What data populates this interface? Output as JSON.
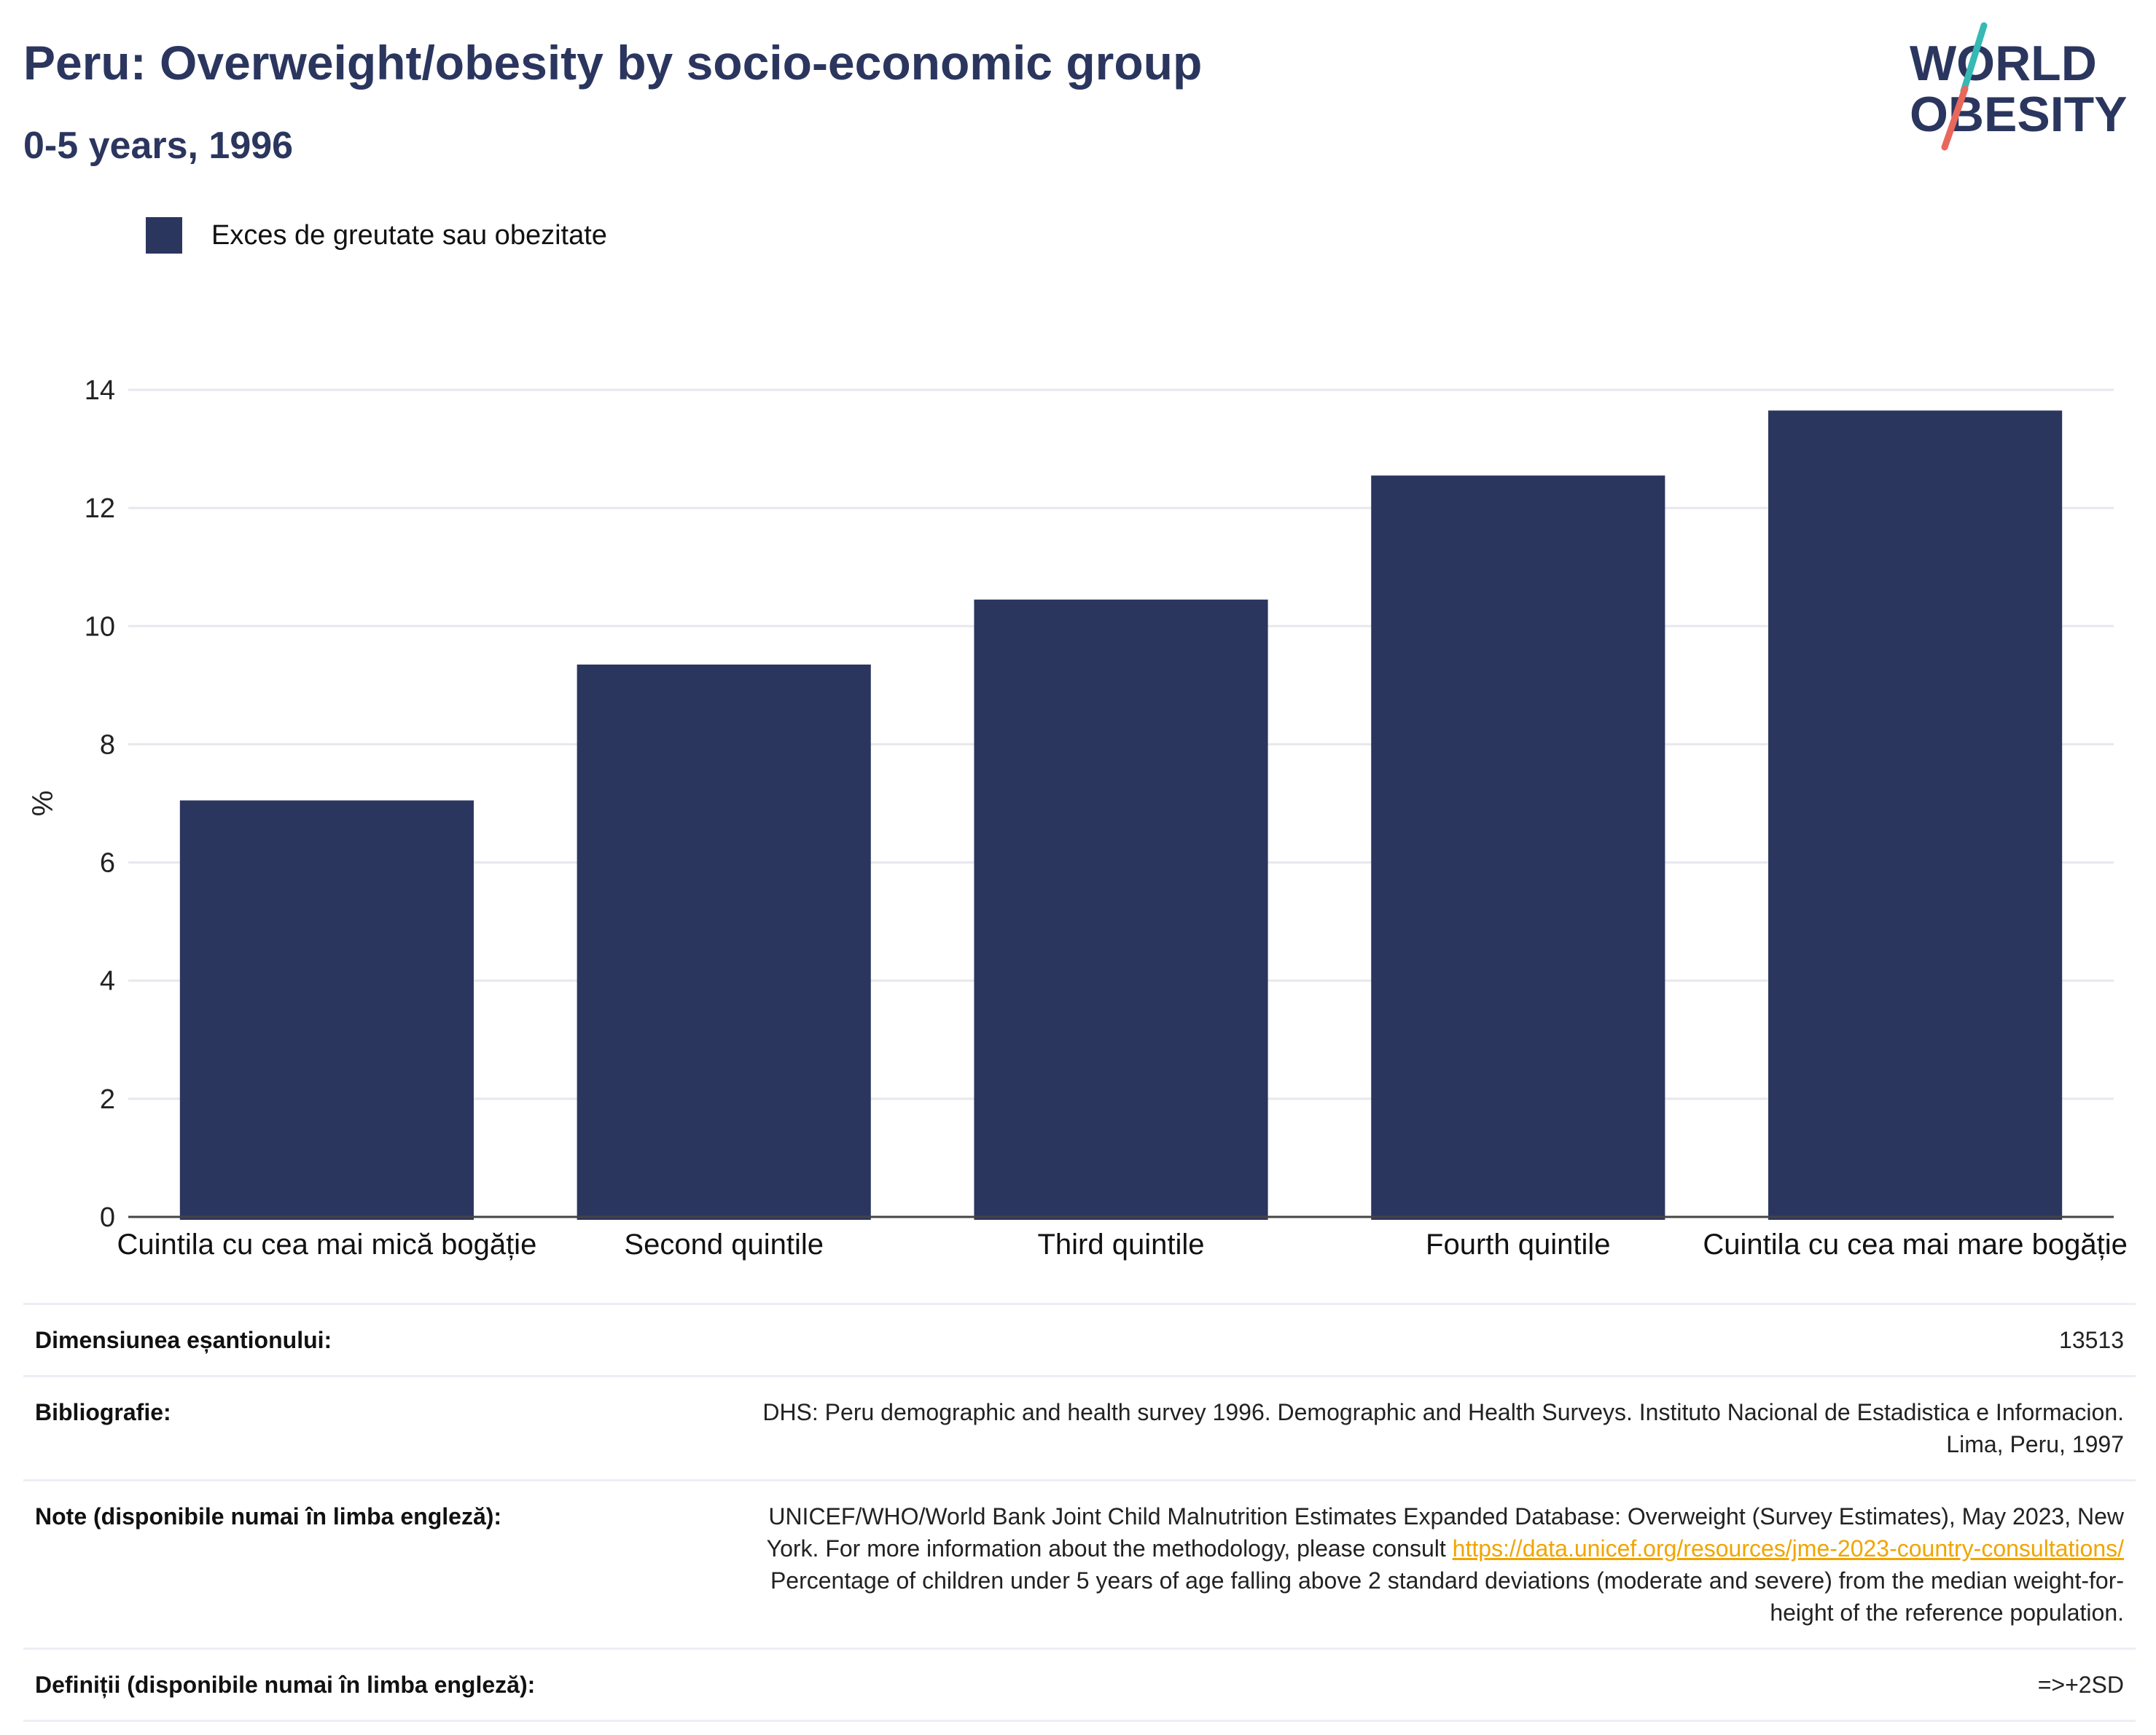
{
  "header": {
    "title": "Peru: Overweight/obesity by socio-economic group",
    "subtitle": "0-5 years, 1996"
  },
  "logo": {
    "line1": "WORLD",
    "line2": "OBESITY",
    "colors": {
      "text": "#2b365f",
      "slash_top": "#36b9b5",
      "slash_bottom": "#e8685c"
    }
  },
  "colors": {
    "bar": "#2b365f",
    "grid": "#e6e8ee",
    "axis": "#444444",
    "link": "#f0a500"
  },
  "chart_data": {
    "type": "bar",
    "categories": [
      "Cuintila cu cea mai mică bogăție",
      "Second quintile",
      "Third quintile",
      "Fourth quintile",
      "Cuintila cu cea mai mare bogăție"
    ],
    "series": [
      {
        "name": "Exces de greutate sau obezitate",
        "values": [
          7.05,
          9.35,
          10.45,
          12.55,
          13.65
        ]
      }
    ],
    "ylabel": "%",
    "ylim": [
      0,
      14
    ],
    "yticks": [
      0,
      2,
      4,
      6,
      8,
      10,
      12,
      14
    ],
    "grid": true,
    "legend": "top-left"
  },
  "info": {
    "sample_label": "Dimensiunea eșantionului:",
    "sample_value": "13513",
    "biblio_label": "Bibliografie:",
    "biblio_line1": "DHS: Peru demographic and health survey 1996. Demographic and Health Surveys. Instituto Nacional de Estadistica e Informacion.",
    "biblio_line2": "Lima, Peru, 1997",
    "notes_label": "Note (disponibile numai în limba engleză):",
    "notes_line1": "UNICEF/WHO/World Bank Joint Child Malnutrition Estimates Expanded Database: Overweight (Survey Estimates), May 2023, New",
    "notes_line2_prefix": "York. For more information about the methodology, please consult",
    "notes_link": "https://data.unicef.org/resources/jme-2023-country-consultations/",
    "notes_line3": "Percentage of children under 5 years of age falling above 2 standard deviations (moderate and severe) from the median weight-for-",
    "notes_line4": "height of the reference population.",
    "defs_label": "Definiții (disponibile numai în limba engleză):",
    "defs_value": "=>+2SD"
  }
}
